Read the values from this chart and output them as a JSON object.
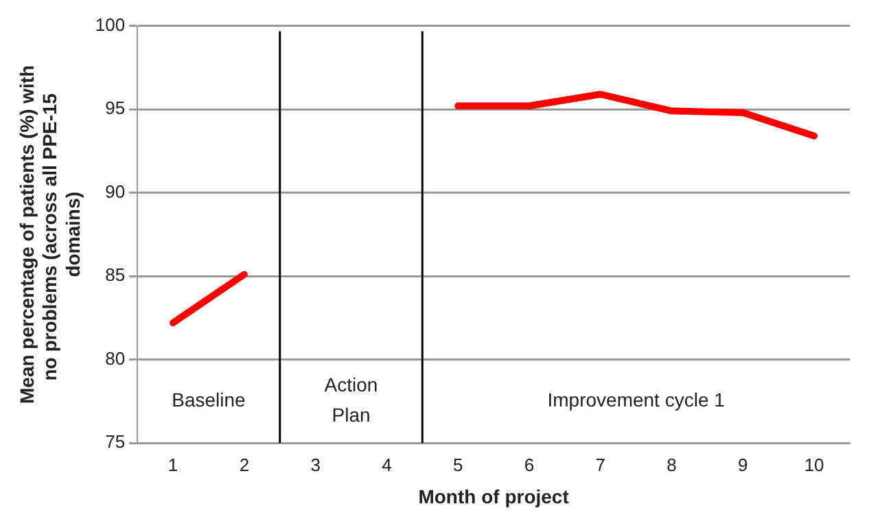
{
  "chart_data": {
    "type": "line",
    "xlabel": "Month of project",
    "ylabel": "Mean percentage of patients (%) with no problems (across all PPE-15 domains)",
    "x": [
      1,
      2,
      3,
      4,
      5,
      6,
      7,
      8,
      9,
      10
    ],
    "series": [
      {
        "color": "#ff0000",
        "values": [
          82.2,
          85.1,
          null,
          null,
          95.2,
          95.2,
          95.9,
          94.9,
          94.8,
          93.4
        ]
      }
    ],
    "xlim": [
      0.5,
      10.5
    ],
    "xticks": [
      1,
      2,
      3,
      4,
      5,
      6,
      7,
      8,
      9,
      10
    ],
    "ylim": [
      75,
      100
    ],
    "yticks": [
      75,
      80,
      85,
      90,
      95,
      100
    ],
    "grid": "y",
    "legend": false,
    "marker": "none",
    "line_style": "solid",
    "ref_lines": [
      {
        "axis": "x",
        "value": 2.5,
        "color": "#000000"
      },
      {
        "axis": "x",
        "value": 4.5,
        "color": "#000000"
      }
    ],
    "annotations": [
      "Baseline",
      "Action\nPlan",
      "Improvement cycle 1"
    ]
  }
}
